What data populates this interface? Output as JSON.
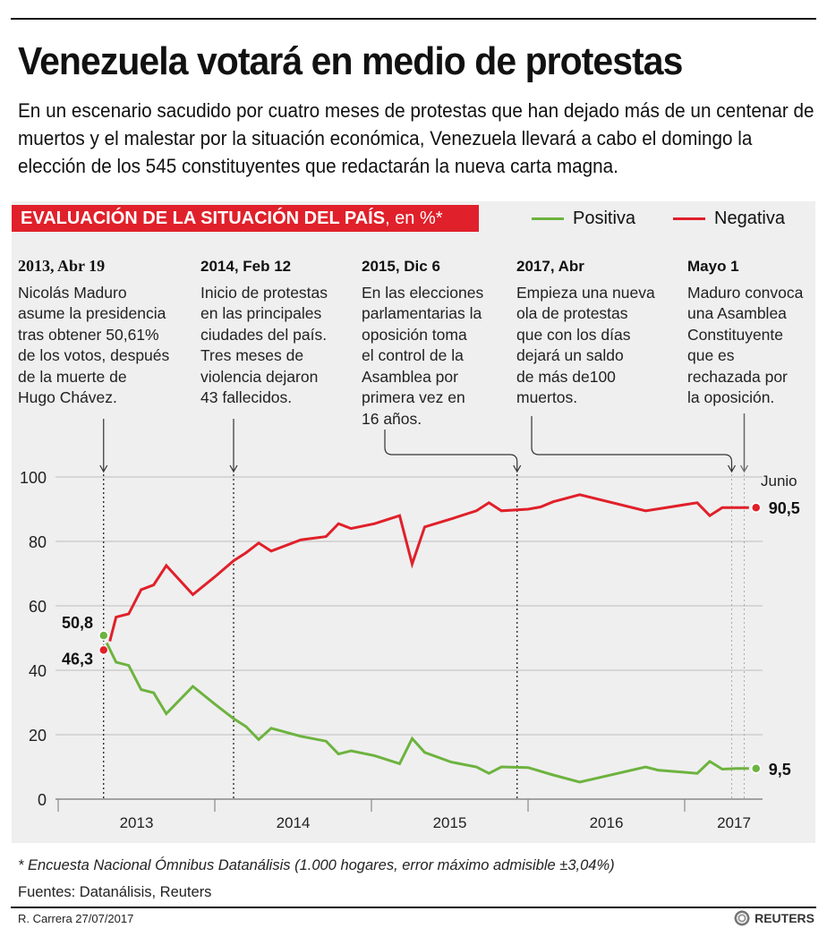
{
  "header": {
    "title": "Venezuela votará en medio de protestas",
    "subtitle": "En un escenario sacudido por cuatro meses de protestas que han dejado más de un centenar de muertos y el malestar por la situación económica, Venezuela llevará a cabo el domingo la elección de los 545 constituyentes que redactarán la nueva carta magna."
  },
  "chart_header": {
    "title_main": "EVALUACIÓN DE LA SITUACIÓN DEL PAÍS",
    "title_unit": ", en %*"
  },
  "legend": [
    {
      "label": "Positiva",
      "color": "#6db33f"
    },
    {
      "label": "Negativa",
      "color": "#e0202a"
    }
  ],
  "annotations": [
    {
      "date": "2013, Abr 19",
      "text": "Nicolás Maduro\nasume la presidencia\ntras obtener 50,61%\nde los votos, después\nde la muerte de\nHugo Chávez.",
      "t": 2013.29
    },
    {
      "date": "2014, Feb 12",
      "text": "Inicio de protestas\nen las principales\nciudades del país.\nTres meses de\nviolencia dejaron\n43 fallecidos.",
      "t": 2014.12
    },
    {
      "date": "2015, Dic 6",
      "text": "En las elecciones\nparlamentarias la\noposición toma\nel control de la\nAsamblea por\nprimera vez en\n16 años.",
      "t": 2015.93
    },
    {
      "date": "2017, Abr",
      "text": "Empieza una nueva\nola de protestas\nque con los días\ndejará un saldo\nde  más de100\nmuertos.",
      "t": 2017.3
    },
    {
      "date": "Mayo 1",
      "text": "Maduro convoca\nuna Asamblea\nConstituyente\nque es\nrechazada por\nla oposición.",
      "t": 2017.38
    }
  ],
  "chart_data": {
    "type": "line",
    "title": "EVALUACIÓN DE LA SITUACIÓN DEL PAÍS, en %*",
    "xlabel": "",
    "ylabel": "",
    "ylim": [
      0,
      100
    ],
    "yticks": [
      0,
      20,
      40,
      60,
      80,
      100
    ],
    "xlim": [
      2013.0,
      2017.5
    ],
    "xticks": [
      2013,
      2014,
      2015,
      2016,
      2017
    ],
    "xtick_labels": [
      "2013",
      "2014",
      "2015",
      "2016",
      "2017"
    ],
    "grid": true,
    "legend_position": "top-right",
    "series": [
      {
        "name": "Negativa",
        "color": "#e0202a",
        "points": [
          [
            2013.29,
            46.3
          ],
          [
            2013.33,
            49.0
          ],
          [
            2013.37,
            56.5
          ],
          [
            2013.45,
            57.5
          ],
          [
            2013.53,
            65.0
          ],
          [
            2013.61,
            66.5
          ],
          [
            2013.69,
            72.5
          ],
          [
            2013.86,
            63.5
          ],
          [
            2014.0,
            69.0
          ],
          [
            2014.12,
            74.0
          ],
          [
            2014.2,
            76.5
          ],
          [
            2014.28,
            79.5
          ],
          [
            2014.36,
            77.0
          ],
          [
            2014.55,
            80.5
          ],
          [
            2014.71,
            81.5
          ],
          [
            2014.79,
            85.5
          ],
          [
            2014.87,
            84.0
          ],
          [
            2015.02,
            85.5
          ],
          [
            2015.18,
            88.0
          ],
          [
            2015.26,
            73.0
          ],
          [
            2015.34,
            84.5
          ],
          [
            2015.51,
            87.0
          ],
          [
            2015.67,
            89.5
          ],
          [
            2015.75,
            92.0
          ],
          [
            2015.83,
            89.5
          ],
          [
            2016.0,
            90.0
          ],
          [
            2016.08,
            90.7
          ],
          [
            2016.16,
            92.3
          ],
          [
            2016.33,
            94.5
          ],
          [
            2016.75,
            89.5
          ],
          [
            2017.08,
            92.0
          ],
          [
            2017.16,
            88.0
          ],
          [
            2017.24,
            90.5
          ],
          [
            2017.33,
            90.5
          ],
          [
            2017.41,
            90.5
          ]
        ],
        "end_label": "90,5",
        "start_label": "46,3"
      },
      {
        "name": "Positiva",
        "color": "#6db33f",
        "points": [
          [
            2013.29,
            50.8
          ],
          [
            2013.31,
            48.5
          ],
          [
            2013.37,
            42.5
          ],
          [
            2013.45,
            41.5
          ],
          [
            2013.53,
            34.0
          ],
          [
            2013.61,
            33.0
          ],
          [
            2013.69,
            26.5
          ],
          [
            2013.86,
            35.0
          ],
          [
            2014.0,
            29.5
          ],
          [
            2014.12,
            25.0
          ],
          [
            2014.2,
            22.5
          ],
          [
            2014.28,
            18.5
          ],
          [
            2014.36,
            22.0
          ],
          [
            2014.55,
            19.5
          ],
          [
            2014.71,
            18.0
          ],
          [
            2014.79,
            14.0
          ],
          [
            2014.87,
            15.0
          ],
          [
            2015.02,
            13.5
          ],
          [
            2015.18,
            11.0
          ],
          [
            2015.26,
            18.8
          ],
          [
            2015.34,
            14.5
          ],
          [
            2015.51,
            11.5
          ],
          [
            2015.67,
            10.0
          ],
          [
            2015.75,
            8.0
          ],
          [
            2015.83,
            10.0
          ],
          [
            2016.0,
            9.8
          ],
          [
            2016.16,
            7.5
          ],
          [
            2016.33,
            5.3
          ],
          [
            2016.75,
            10.0
          ],
          [
            2016.83,
            9.0
          ],
          [
            2017.08,
            8.0
          ],
          [
            2017.16,
            11.7
          ],
          [
            2017.24,
            9.3
          ],
          [
            2017.33,
            9.5
          ],
          [
            2017.41,
            9.5
          ]
        ],
        "end_label": "9,5",
        "start_label": "50,8"
      }
    ],
    "end_annotation": "Junio"
  },
  "footer": {
    "footnote": "* Encuesta Nacional Ómnibus Datanálisis (1.000 hogares, error máximo admisible ±3,04%)",
    "sources": "Fuentes: Datanálisis, Reuters",
    "credit": "R. Carrera 27/07/2017",
    "brand": "REUTERS"
  }
}
